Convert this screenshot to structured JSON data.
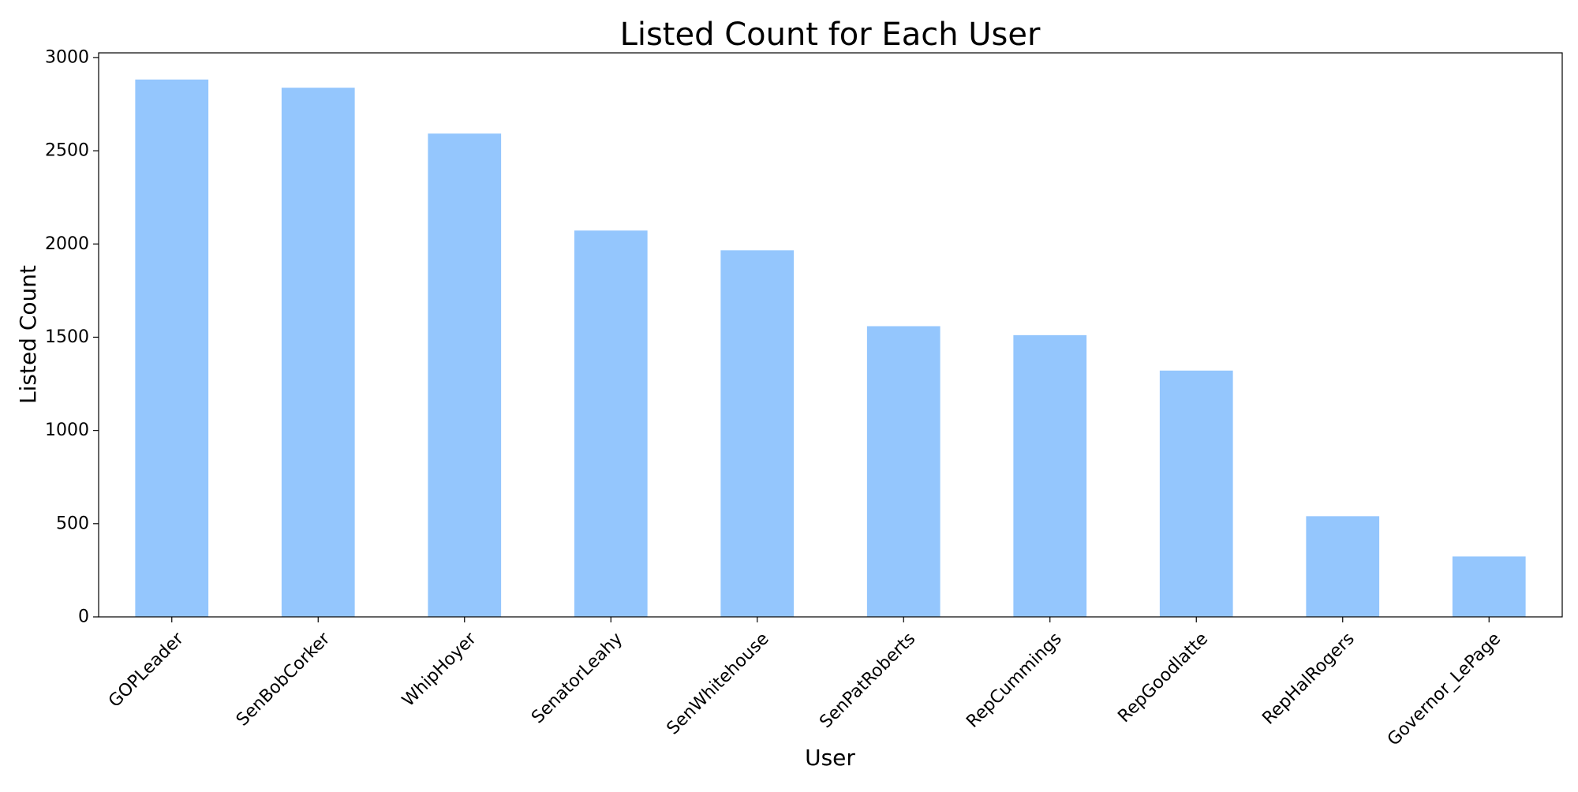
{
  "chart_data": {
    "type": "bar",
    "title": "Listed Count for Each User",
    "xlabel": "User",
    "ylabel": "Listed Count",
    "categories": [
      "GOPLeader",
      "SenBobCorker",
      "WhipHoyer",
      "SenatorLeahy",
      "SenWhitehouse",
      "SenPatRoberts",
      "RepCummings",
      "RepGoodlatte",
      "RepHalRogers",
      "Governor_LePage"
    ],
    "values": [
      2882,
      2838,
      2592,
      2072,
      1966,
      1559,
      1511,
      1321,
      540,
      324
    ],
    "ylim": [
      0,
      3025
    ],
    "yticks": [
      0,
      500,
      1000,
      1500,
      2000,
      2500,
      3000
    ],
    "bar_color": "#94c6fd",
    "grid": false,
    "legend": "none"
  }
}
